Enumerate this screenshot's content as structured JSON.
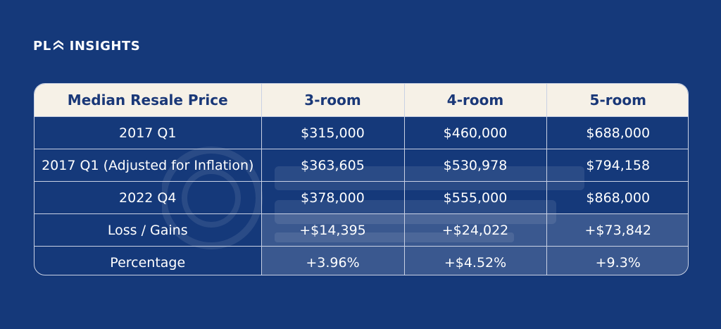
{
  "brand": {
    "prefix": "PL",
    "suffix": "INSIGHTS"
  },
  "table": {
    "headers": [
      "Median Resale Price",
      "3-room",
      "4-room",
      "5-room"
    ],
    "rows": [
      [
        "2017 Q1",
        "$315,000",
        "$460,000",
        "$688,000"
      ],
      [
        "2017 Q1 (Adjusted for Inflation)",
        "$363,605",
        "$530,978",
        "$794,158"
      ],
      [
        "2022 Q4",
        "$378,000",
        "$555,000",
        "$868,000"
      ],
      [
        "Loss / Gains",
        "+$14,395",
        "+$24,022",
        "+$73,842"
      ],
      [
        "Percentage",
        "+3.96%",
        "+$4.52%",
        "+9.3%"
      ]
    ]
  },
  "colors": {
    "background": "#15397a",
    "header_bg": "#f6f1e7",
    "header_text": "#1a3878",
    "highlight_cells": "rgba(255,255,255,0.16)"
  }
}
